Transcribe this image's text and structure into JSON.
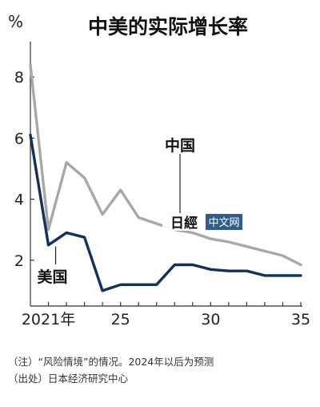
{
  "chart_data": {
    "type": "line",
    "title": "中美的实际增长率",
    "ylabel": "%",
    "xlabel": "",
    "ylim": [
      0.5,
      9
    ],
    "xlim": [
      2020,
      2035
    ],
    "y_ticks": [
      2,
      4,
      6,
      8
    ],
    "x_ticks": [
      {
        "value": 2021,
        "label": "2021年"
      },
      {
        "value": 2025,
        "label": "25"
      },
      {
        "value": 2030,
        "label": "30"
      },
      {
        "value": 2035,
        "label": "35"
      }
    ],
    "grid": false,
    "legend": "inline labels",
    "x": [
      2020,
      2021,
      2022,
      2023,
      2024,
      2025,
      2026,
      2027,
      2028,
      2029,
      2030,
      2031,
      2032,
      2033,
      2034,
      2035
    ],
    "series": [
      {
        "name": "中国",
        "color": "#a8a8a8",
        "values": [
          8.4,
          3.0,
          5.2,
          4.7,
          3.5,
          4.3,
          3.4,
          3.2,
          3.0,
          2.9,
          2.7,
          2.6,
          2.45,
          2.3,
          2.15,
          1.85
        ]
      },
      {
        "name": "美国",
        "color": "#13305c",
        "values": [
          6.1,
          2.5,
          2.9,
          2.75,
          1.0,
          1.2,
          1.2,
          1.2,
          1.85,
          1.85,
          1.7,
          1.65,
          1.65,
          1.5,
          1.5,
          1.5
        ]
      }
    ]
  },
  "watermark": {
    "brand": "日經",
    "site": "中文网"
  },
  "notes": {
    "note": "（注）“风险情境”的情况。2024年以后为预测",
    "source": "（出处）日本经济研究中心"
  }
}
